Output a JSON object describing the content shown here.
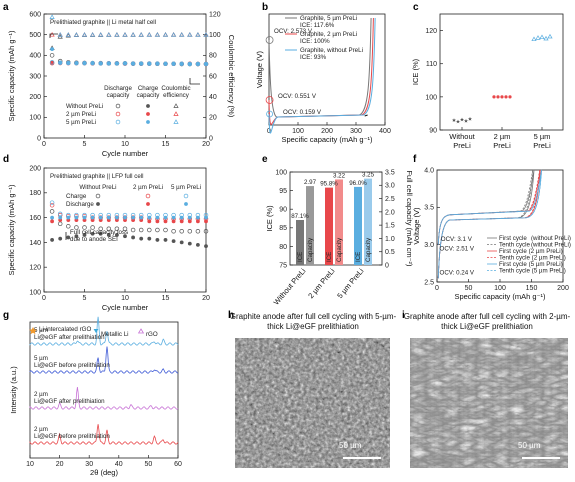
{
  "colors": {
    "none": "#555555",
    "p2": "#e8474a",
    "p5": "#5aaee0",
    "grey": "#777777"
  },
  "panel_labels": [
    "a",
    "b",
    "c",
    "d",
    "e",
    "f",
    "g",
    "h",
    "i"
  ],
  "chart_data": [
    {
      "id": "a",
      "type": "scatter",
      "title": "Prelithiated graphite || Li metal half cell",
      "xlabel": "Cycle number",
      "ylabel": "Specific capacity (mAh g⁻¹)",
      "y2label": "Coulombic efficiency (%)",
      "xlim": [
        0,
        20
      ],
      "ylim": [
        0,
        600
      ],
      "y2lim": [
        0,
        120
      ],
      "xticks": [
        "0",
        "5",
        "10",
        "15",
        "20"
      ],
      "yticks": [
        "0",
        "100",
        "200",
        "300",
        "400",
        "500",
        "600"
      ],
      "y2ticks": [
        "0",
        "20",
        "40",
        "60",
        "80",
        "100",
        "120"
      ],
      "legend_headers": [
        "Discharge capacity",
        "Charge capacity",
        "Coulombic efficiency"
      ],
      "legend_rows": [
        "Without PreLi",
        "2 µm PreLi",
        "5 µm PreLi"
      ],
      "series": [
        {
          "name": "Without PreLi",
          "discharge": [
            400,
            372,
            366,
            364,
            363,
            362,
            362,
            361,
            361,
            361,
            360,
            360,
            360,
            359,
            359,
            359,
            358,
            358,
            358,
            358
          ],
          "charge": [
            365,
            364,
            363,
            362,
            362,
            361,
            361,
            360,
            360,
            360,
            359,
            359,
            359,
            358,
            358,
            358,
            357,
            357,
            357,
            357
          ],
          "ce": [
            87,
            98,
            99,
            99.5,
            99.6,
            99.7,
            99.7,
            99.8,
            99.8,
            99.8,
            99.8,
            99.8,
            99.9,
            99.9,
            99.9,
            99.9,
            99.9,
            99.9,
            99.9,
            99.9
          ]
        },
        {
          "name": "2 µm PreLi",
          "discharge": [
            362,
            363,
            362,
            362,
            362,
            361,
            361,
            361,
            361,
            360,
            360,
            360,
            360,
            360,
            359,
            359,
            359,
            359,
            358,
            358
          ],
          "charge": [
            362,
            362,
            362,
            361,
            361,
            361,
            360,
            360,
            360,
            360,
            360,
            359,
            359,
            359,
            359,
            358,
            358,
            358,
            358,
            357
          ],
          "ce": [
            100,
            99.8,
            99.8,
            99.8,
            99.9,
            99.9,
            99.9,
            99.9,
            99.9,
            99.9,
            99.9,
            99.9,
            99.9,
            99.9,
            99.9,
            99.9,
            99.9,
            99.9,
            99.9,
            99.9
          ]
        },
        {
          "name": "5 µm PreLi",
          "discharge": [
            366,
            364,
            363,
            362,
            362,
            362,
            361,
            361,
            361,
            361,
            360,
            360,
            360,
            360,
            359,
            359,
            359,
            358,
            358,
            358
          ],
          "charge": [
            430,
            364,
            363,
            362,
            362,
            361,
            361,
            361,
            360,
            360,
            360,
            360,
            359,
            359,
            359,
            359,
            358,
            358,
            358,
            358
          ],
          "ce": [
            117,
            99.8,
            99.8,
            99.8,
            99.9,
            99.9,
            99.9,
            99.9,
            99.9,
            99.9,
            99.9,
            99.9,
            99.9,
            99.9,
            99.9,
            99.9,
            99.9,
            99.9,
            99.9,
            99.9
          ]
        }
      ]
    },
    {
      "id": "b",
      "type": "line",
      "xlabel": "Specific capacity (mAh g⁻¹)",
      "ylabel": "Voltage (V)",
      "xlim": [
        0,
        400
      ],
      "xticks": [
        "0",
        "100",
        "200",
        "300",
        "400"
      ],
      "annotations": [
        "OCV: 2.573 V",
        "OCV: 0.551 V",
        "OCV: 0.159 V"
      ],
      "series": [
        {
          "name": "Graphite, 5 µm PreLi",
          "ice": "ICE: 117.6%"
        },
        {
          "name": "Graphite, 2 µm PreLi",
          "ice": "ICE: 100%"
        },
        {
          "name": "Graphite, without PreLi",
          "ice": "ICE: 93%"
        }
      ]
    },
    {
      "id": "c",
      "type": "scatter",
      "ylabel": "ICE (%)",
      "ylim": [
        90,
        125
      ],
      "yticks": [
        "90",
        "100",
        "110",
        "120"
      ],
      "categories": [
        "Without PreLi",
        "2 µm PreLi",
        "5 µm PreLi"
      ],
      "values": [
        [
          93.0,
          92.6,
          93.2,
          92.8,
          93.4
        ],
        [
          100,
          100,
          100,
          100,
          100
        ],
        [
          117.4,
          117.8,
          118.0,
          117.6,
          118.2
        ]
      ]
    },
    {
      "id": "d",
      "type": "scatter",
      "title": "Prelithiated graphite || LFP full cell",
      "xlabel": "Cycle number",
      "ylabel": "Specific capacity (mAh g⁻¹)",
      "xlim": [
        0,
        20
      ],
      "ylim": [
        100,
        200
      ],
      "xticks": [
        "0",
        "5",
        "10",
        "15",
        "20"
      ],
      "yticks": [
        "100",
        "120",
        "140",
        "160",
        "180",
        "200"
      ],
      "legend_headers": [
        "Without PreLi",
        "2 µm PreLi",
        "5 µm PreLi"
      ],
      "legend_rows": [
        "Charge",
        "Discharge"
      ],
      "annotation": "Full cell capacity loss due to anode SEI",
      "series": [
        {
          "name": "Without PreLi",
          "charge": [
            165,
            155,
            153,
            152,
            152,
            152,
            151,
            151,
            151,
            151,
            150,
            150,
            150,
            150,
            150,
            149,
            149,
            149,
            149,
            149
          ],
          "discharge": [
            142,
            143,
            144,
            145,
            146,
            147,
            147,
            146,
            146,
            145,
            144,
            143,
            143,
            142,
            142,
            141,
            140,
            139,
            138,
            137
          ]
        },
        {
          "name": "2 µm PreLi",
          "charge": [
            170,
            162,
            161,
            161,
            161,
            160,
            160,
            160,
            160,
            160,
            160,
            160,
            159,
            159,
            159,
            159,
            159,
            159,
            159,
            159
          ],
          "discharge": [
            157,
            158,
            158,
            158,
            158,
            158,
            158,
            158,
            158,
            158,
            158,
            158,
            157,
            157,
            157,
            157,
            157,
            157,
            157,
            157
          ]
        },
        {
          "name": "5 µm PreLi",
          "charge": [
            172,
            163,
            162,
            162,
            162,
            162,
            162,
            162,
            162,
            162,
            162,
            162,
            162,
            162,
            162,
            162,
            162,
            162,
            162,
            162
          ],
          "discharge": [
            160,
            160,
            160,
            160,
            160,
            160,
            160,
            160,
            160,
            160,
            160,
            160,
            160,
            160,
            160,
            160,
            160,
            160,
            160,
            160
          ]
        }
      ]
    },
    {
      "id": "e",
      "type": "bar",
      "ylabel": "ICE (%)",
      "y2label": "Full cell capacity (mAh cm⁻²)",
      "ylim": [
        75,
        100
      ],
      "y2lim": [
        0,
        3.5
      ],
      "yticks": [
        "75",
        "80",
        "85",
        "90",
        "95",
        "100"
      ],
      "y2ticks": [
        "0",
        "0.5",
        "1.0",
        "1.5",
        "2.0",
        "2.5",
        "3.0",
        "3.5"
      ],
      "categories": [
        "Without PreLi",
        "2 µm PreLi",
        "5 µm PreLi"
      ],
      "series": [
        {
          "name": "ICE",
          "values": [
            87.1,
            95.8,
            96.0
          ],
          "labels": [
            "87.1%",
            "95.8%",
            "96.0%"
          ]
        },
        {
          "name": "Capacity",
          "values": [
            2.97,
            3.22,
            3.25
          ],
          "labels": [
            "2.97",
            "3.22",
            "3.25"
          ]
        }
      ],
      "bar_texts": [
        "ICE",
        "Capacity",
        "ICE",
        "Capacity",
        "ICE",
        "Capacity"
      ]
    },
    {
      "id": "f",
      "type": "line",
      "xlabel": "Specific capacity (mAh g⁻¹)",
      "ylabel": "Voltage (V)",
      "xlim": [
        0,
        200
      ],
      "ylim": [
        2.5,
        4.0
      ],
      "xticks": [
        "0",
        "50",
        "100",
        "150",
        "200"
      ],
      "yticks": [
        "2.5",
        "3.0",
        "3.5",
        "4.0"
      ],
      "annotations": [
        "OCV: 3.1 V",
        "OCV: 2.51 V",
        "OCV: 0.24 V"
      ],
      "legend": [
        {
          "label": "First cycle",
          "tag": "(without PreLi)"
        },
        {
          "label": "Tenth cycle",
          "tag": "(without PreLi)"
        },
        {
          "label": "First cycle (2 µm PreLi)",
          "tag": ""
        },
        {
          "label": "Tenth cycle (2 µm PreLi)",
          "tag": ""
        },
        {
          "label": "First cycle (5 µm PreLi)",
          "tag": ""
        },
        {
          "label": "Tenth cycle (5 µm PreLi)",
          "tag": ""
        }
      ]
    },
    {
      "id": "g",
      "type": "line",
      "xlabel": "2θ (deg)",
      "ylabel": "Intensity (a.u.)",
      "xlim": [
        10,
        60
      ],
      "xticks": [
        "10",
        "20",
        "30",
        "40",
        "50",
        "60"
      ],
      "legend": [
        "Li-intercalated rGO",
        "Metallic Li",
        "rGO"
      ],
      "series": [
        {
          "name": "5 µm Li@eGF after prelithiation"
        },
        {
          "name": "5 µm Li@eGF before prelithiation"
        },
        {
          "name": "2 µm Li@eGF after prelithiation"
        },
        {
          "name": "2 µm Li@eGF before prelithiation"
        }
      ]
    }
  ],
  "sem": [
    {
      "id": "h",
      "caption": "Graphite anode after full cell cycling with 5-µm-thick Li@eGF prelithiation",
      "scale": "50 µm"
    },
    {
      "id": "i",
      "caption": "Graphite anode after full cell cycling with 2-µm-thick Li@eGF prelithiation",
      "scale": "50 µm"
    }
  ]
}
